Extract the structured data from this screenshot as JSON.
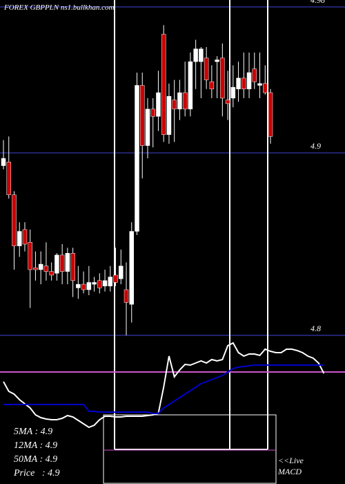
{
  "chart_data": {
    "type": "candlestick",
    "title": "FOREX GBPPLN ns1.bullkhan.com",
    "ylim": [
      4.8,
      4.98
    ],
    "yticks": [
      4.8,
      4.9,
      4.98
    ],
    "grid": true,
    "up_color": "#ffffff",
    "down_color": "#cc0000",
    "open": [
      4.893,
      4.895,
      4.877,
      4.849,
      4.858,
      4.851,
      4.837,
      4.836,
      4.838,
      4.835,
      4.834,
      4.844,
      4.835,
      4.845,
      4.826,
      4.828,
      4.825,
      4.828,
      4.83,
      4.827,
      4.827,
      4.833,
      4.831,
      4.825,
      4.817,
      4.857,
      4.937,
      4.904,
      4.924,
      4.92,
      4.965,
      4.91,
      4.929,
      4.924,
      4.933,
      4.924,
      4.95,
      4.95,
      4.952,
      4.939,
      4.95,
      4.952,
      4.929,
      4.93,
      4.935,
      4.941,
      4.935,
      4.946,
      4.937,
      4.938,
      4.933
    ],
    "high": [
      4.907,
      4.909,
      4.879,
      4.862,
      4.862,
      4.858,
      4.846,
      4.846,
      4.851,
      4.84,
      4.845,
      4.85,
      4.848,
      4.848,
      4.838,
      4.835,
      4.838,
      4.832,
      4.834,
      4.836,
      4.838,
      4.848,
      4.847,
      4.84,
      4.862,
      4.944,
      4.944,
      4.93,
      4.93,
      4.945,
      4.97,
      4.938,
      4.94,
      4.94,
      4.95,
      4.955,
      4.962,
      4.958,
      4.958,
      4.948,
      4.953,
      4.96,
      4.945,
      4.948,
      4.95,
      4.955,
      4.955,
      4.955,
      4.955,
      4.948,
      4.935
    ],
    "low": [
      4.891,
      4.875,
      4.836,
      4.843,
      4.846,
      4.815,
      4.83,
      4.828,
      4.83,
      4.83,
      4.83,
      4.828,
      4.828,
      4.821,
      4.82,
      4.823,
      4.822,
      4.824,
      4.823,
      4.824,
      4.824,
      4.827,
      4.828,
      4.8,
      4.807,
      4.855,
      4.886,
      4.897,
      4.903,
      4.912,
      4.906,
      4.905,
      4.906,
      4.918,
      4.92,
      4.92,
      4.935,
      4.93,
      4.935,
      4.93,
      4.93,
      4.92,
      4.918,
      4.925,
      4.928,
      4.93,
      4.93,
      4.935,
      4.93,
      4.932,
      4.905
    ],
    "close": [
      4.897,
      4.877,
      4.849,
      4.857,
      4.85,
      4.836,
      4.836,
      4.839,
      4.835,
      4.833,
      4.844,
      4.835,
      4.845,
      4.83,
      4.828,
      4.825,
      4.829,
      4.829,
      4.826,
      4.83,
      4.832,
      4.829,
      4.838,
      4.818,
      4.857,
      4.937,
      4.904,
      4.924,
      4.92,
      4.933,
      4.91,
      4.931,
      4.924,
      4.933,
      4.924,
      4.95,
      4.957,
      4.957,
      4.94,
      4.935,
      4.951,
      4.93,
      4.927,
      4.936,
      4.941,
      4.935,
      4.944,
      4.939,
      4.938,
      4.933,
      4.909
    ],
    "macd": [
      {
        "color": "#ffffff",
        "values": [
          68,
          54,
          50,
          42,
          36,
          30,
          20,
          16,
          14,
          13,
          13,
          15,
          19,
          17,
          12,
          7,
          2,
          5,
          13,
          18,
          18,
          17,
          17,
          18,
          18,
          18,
          18,
          19,
          20,
          22,
          60,
          105,
          75,
          85,
          93,
          92,
          95,
          98,
          95,
          100,
          98,
          100,
          120,
          124,
          110,
          105,
          108,
          108,
          106,
          115,
          112,
          110,
          110,
          115,
          115,
          113,
          110,
          105,
          102,
          95,
          80
        ]
      },
      {
        "color": "#0000cc",
        "values": [
          35,
          35,
          35,
          35,
          35,
          35,
          35,
          35,
          35,
          35,
          35,
          35,
          35,
          35,
          35,
          35,
          25,
          25,
          24,
          24,
          24,
          24,
          24,
          24,
          24,
          24,
          24,
          24,
          22,
          22,
          30,
          35,
          40,
          45,
          50,
          55,
          60,
          65,
          68,
          71,
          74,
          77,
          82,
          87,
          89,
          90,
          91,
          92,
          92,
          92,
          92,
          92,
          92,
          92,
          92,
          92,
          92,
          92,
          92,
          92,
          92
        ]
      }
    ],
    "annotations": [
      "5MA : 4.9",
      "12MA : 4.9",
      "50MA : 4.9",
      "Price   : 4.9",
      "<<Live",
      "MACD"
    ]
  }
}
